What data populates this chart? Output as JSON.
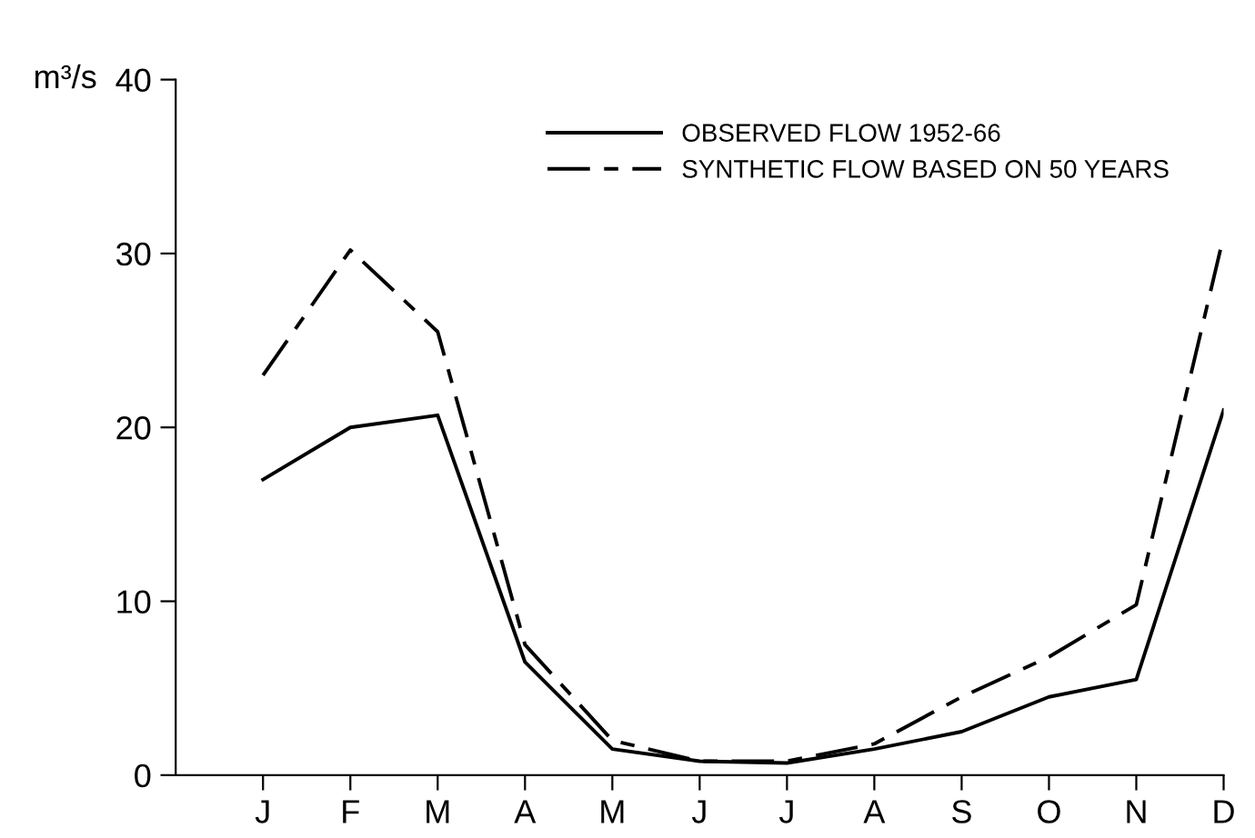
{
  "chart_data": {
    "type": "line",
    "ylabel": "m³/s",
    "categories": [
      "J",
      "F",
      "M",
      "A",
      "M",
      "J",
      "J",
      "A",
      "S",
      "O",
      "N",
      "D"
    ],
    "series": [
      {
        "name": "OBSERVED FLOW 1952-66",
        "color": "#000000",
        "line_style": "solid",
        "values": [
          17,
          20,
          20.7,
          6.5,
          1.5,
          0.8,
          0.7,
          1.5,
          2.5,
          4.5,
          5.5,
          21
        ]
      },
      {
        "name": "SYNTHETIC FLOW BASED ON 50 YEARS",
        "color": "#000000",
        "line_style": "dashed",
        "values": [
          23,
          30.2,
          25.5,
          7.5,
          2,
          0.8,
          0.8,
          1.8,
          4.5,
          6.8,
          9.8,
          31
        ]
      }
    ],
    "ylim": [
      0,
      40
    ],
    "yticks": [
      0,
      10,
      20,
      30,
      40
    ],
    "grid": false,
    "legend": "top right",
    "marker": "none"
  }
}
